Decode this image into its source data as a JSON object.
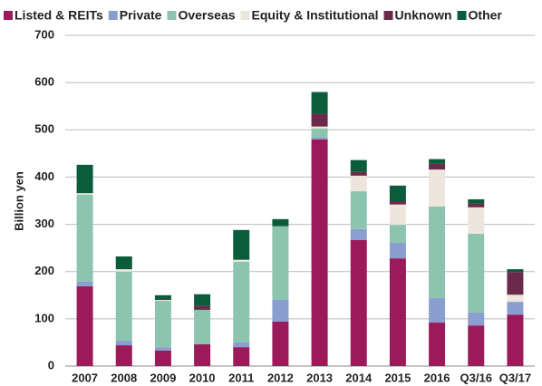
{
  "chart_data": {
    "type": "stacked_bar",
    "y_label": "Billion yen",
    "categories": [
      "2007",
      "2008",
      "2009",
      "2010",
      "2011",
      "2012",
      "2013",
      "2014",
      "2015",
      "2016",
      "Q3/16",
      "Q3/17"
    ],
    "series": [
      {
        "name": "Listed & REITs",
        "color": "#9b1b5a",
        "values": [
          169,
          44,
          33,
          46,
          40,
          94,
          480,
          267,
          228,
          92,
          86,
          109
        ]
      },
      {
        "name": "Private",
        "color": "#8a9fd0",
        "values": [
          10,
          10,
          7,
          0,
          10,
          46,
          4,
          23,
          33,
          52,
          27,
          27
        ]
      },
      {
        "name": "Overseas",
        "color": "#8cc4b0",
        "values": [
          184,
          146,
          98,
          73,
          171,
          156,
          19,
          80,
          38,
          194,
          167,
          0
        ]
      },
      {
        "name": "Equity & Institutional",
        "color": "#ede6dc",
        "values": [
          3,
          5,
          2,
          0,
          4,
          0,
          4,
          33,
          43,
          78,
          56,
          15
        ]
      },
      {
        "name": "Unknown",
        "color": "#6b2a4a",
        "values": [
          0,
          0,
          0,
          8,
          0,
          0,
          27,
          8,
          7,
          12,
          8,
          48
        ]
      },
      {
        "name": "Other",
        "color": "#0a5c3a",
        "values": [
          60,
          27,
          10,
          25,
          63,
          15,
          46,
          25,
          33,
          10,
          9,
          6
        ]
      }
    ],
    "ylim": [
      0,
      700
    ],
    "yticks": [
      0,
      100,
      200,
      300,
      400,
      500,
      600,
      700
    ],
    "grid": true,
    "legend": "top"
  }
}
